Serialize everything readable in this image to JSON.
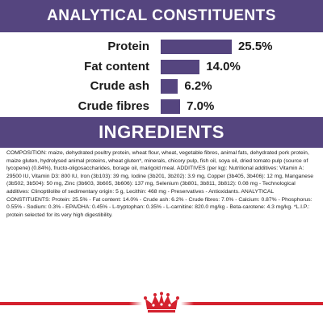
{
  "colors": {
    "brand_purple": "#55457f",
    "brand_red": "#d4212e",
    "text": "#1a1a1a"
  },
  "analytical": {
    "title": "ANALYTICAL CONSTITUENTS",
    "rows": [
      {
        "label": "Protein",
        "value_text": "25.5%",
        "value": 25.5
      },
      {
        "label": "Fat content",
        "value_text": "14.0%",
        "value": 14.0
      },
      {
        "label": "Crude ash",
        "value_text": "6.2%",
        "value": 6.2
      },
      {
        "label": "Crude fibres",
        "value_text": "7.0%",
        "value": 7.0
      }
    ]
  },
  "ingredients": {
    "title": "INGREDIENTS",
    "composition": "COMPOSITION: maize, dehydrated poultry protein, wheat flour, wheat, vegetable fibres, animal fats, dehydrated pork protein, maize gluten, hydrolysed animal proteins, wheat gluten*, minerals, chicory pulp, fish oil, soya oil, dried tomato pulp (source of lycopene) (0.84%), fructo-oligosaccharides, borage oil, marigold meal. ADDITIVES (per kg): Nutritional additives: Vitamin A: 29500 IU, Vitamin D3: 800 IU, Iron (3b103): 39 mg, Iodine (3b201, 3b202): 3.9 mg, Copper (3b405, 3b406): 12 mg, Manganese (3b502, 3b504): 50 mg, Zinc (3b603, 3b605, 3b606): 137 mg, Selenium (3b801, 3b811, 3b812): 0.08 mg - Technological additives: Clinoptilolite of sedimentary origin: 5 g, Lecithin: 468 mg - Preservatives - Antioxidants. ANALYTICAL CONSTITUENTS: Protein: 25.5% - Fat content: 14.0% - Crude ash: 6.2% - Crude fibres: 7.0% - Calcium: 0.87% - Phosphorus: 0.55% - Sodium: 0.3% - EPA/DHA: 0.45% - L-tryptophan: 0.35% - L-carnitine: 820.0 mg/kg - Beta-carotene: 4.3 mg/kg. *L.I.P.: protein selected for its very high digestibility."
  },
  "footer": {
    "logo_icon": "royal-canin-crown-icon"
  }
}
